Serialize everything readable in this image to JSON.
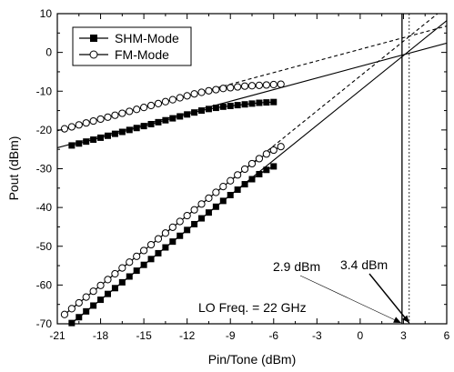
{
  "chart_data": {
    "type": "line",
    "xlabel": "Pin/Tone (dBm)",
    "ylabel": "Pout (dBm)",
    "xlim": [
      -21,
      6
    ],
    "ylim": [
      -70,
      10
    ],
    "xticks": [
      -21,
      -18,
      -15,
      -12,
      -9,
      -6,
      -3,
      0,
      3,
      6
    ],
    "yticks": [
      -70,
      -60,
      -50,
      -40,
      -30,
      -20,
      -10,
      0,
      10
    ],
    "xtick_labels": [
      "-21",
      "-18",
      "-15",
      "-12",
      "-9",
      "-6",
      "-3",
      "0",
      "3",
      "6"
    ],
    "ytick_labels": [
      "-70",
      "-60",
      "-50",
      "-40",
      "-30",
      "-20",
      "-10",
      "0",
      "10"
    ],
    "grid": false,
    "legend_position": "top-left",
    "series": [
      {
        "name": "SHM-Mode",
        "marker": "filled-square",
        "x": [
          -20,
          -19.5,
          -19,
          -18.5,
          -18,
          -17.5,
          -17,
          -16.5,
          -16,
          -15.5,
          -15,
          -14.5,
          -14,
          -13.5,
          -13,
          -12.5,
          -12,
          -11.5,
          -11,
          -10.5,
          -10,
          -9.5,
          -9,
          -8.5,
          -8,
          -7.5,
          -7,
          -6.5,
          -6
        ],
        "fundamental": [
          -24.0,
          -23.5,
          -23.0,
          -22.5,
          -22.0,
          -21.5,
          -21.0,
          -20.5,
          -20.0,
          -19.5,
          -19.0,
          -18.5,
          -18.0,
          -17.5,
          -17.0,
          -16.5,
          -16.0,
          -15.5,
          -15.0,
          -14.6,
          -14.3,
          -14.0,
          -13.8,
          -13.6,
          -13.4,
          -13.2,
          -13.0,
          -12.9,
          -12.8
        ],
        "im3": [
          -69.8,
          -68.3,
          -66.8,
          -65.3,
          -63.8,
          -62.3,
          -60.8,
          -59.3,
          -57.8,
          -56.3,
          -54.8,
          -53.3,
          -51.8,
          -50.3,
          -48.8,
          -47.3,
          -45.8,
          -44.3,
          -42.8,
          -41.3,
          -39.8,
          -38.3,
          -36.8,
          -35.4,
          -34.0,
          -32.7,
          -31.4,
          -30.3,
          -29.4
        ]
      },
      {
        "name": "FM-Mode",
        "marker": "open-circle",
        "x": [
          -20.5,
          -20,
          -19.5,
          -19,
          -18.5,
          -18,
          -17.5,
          -17,
          -16.5,
          -16,
          -15.5,
          -15,
          -14.5,
          -14,
          -13.5,
          -13,
          -12.5,
          -12,
          -11.5,
          -11,
          -10.5,
          -10,
          -9.5,
          -9,
          -8.5,
          -8,
          -7.5,
          -7,
          -6.5,
          -6,
          -5.5
        ],
        "fundamental": [
          -19.7,
          -19.2,
          -18.7,
          -18.2,
          -17.7,
          -17.2,
          -16.7,
          -16.2,
          -15.7,
          -15.2,
          -14.7,
          -14.2,
          -13.7,
          -13.2,
          -12.7,
          -12.2,
          -11.7,
          -11.2,
          -10.7,
          -10.3,
          -9.9,
          -9.6,
          -9.3,
          -9.1,
          -8.9,
          -8.7,
          -8.6,
          -8.5,
          -8.4,
          -8.3,
          -8.2
        ],
        "im3": [
          -67.6,
          -66.1,
          -64.6,
          -63.1,
          -61.6,
          -60.1,
          -58.6,
          -57.1,
          -55.6,
          -54.1,
          -52.6,
          -51.1,
          -49.6,
          -48.1,
          -46.6,
          -45.1,
          -43.6,
          -42.1,
          -40.6,
          -39.1,
          -37.6,
          -36.1,
          -34.6,
          -33.1,
          -31.6,
          -30.1,
          -28.7,
          -27.4,
          -26.2,
          -25.2,
          -24.3
        ]
      }
    ],
    "extrapolation_lines": [
      {
        "series": "SHM-Mode",
        "kind": "fundamental",
        "style": "solid",
        "x": [
          -21,
          6
        ],
        "y": [
          -24.6,
          2.4
        ]
      },
      {
        "series": "SHM-Mode",
        "kind": "im3",
        "style": "solid",
        "x": [
          -20,
          6
        ],
        "y": [
          -69.8,
          8.2
        ]
      },
      {
        "series": "FM-Mode",
        "kind": "fundamental",
        "style": "dashed",
        "x": [
          -21,
          6
        ],
        "y": [
          -20.2,
          6.8
        ]
      },
      {
        "series": "FM-Mode",
        "kind": "im3",
        "style": "dashed",
        "x": [
          -20.5,
          6
        ],
        "y": [
          -67.6,
          11.9
        ]
      }
    ],
    "vertical_markers": [
      {
        "x": 2.9,
        "style": "solid"
      },
      {
        "x": 3.4,
        "style": "dashed"
      }
    ],
    "annotations": [
      {
        "text": "2.9 dBm",
        "target_x": 2.9
      },
      {
        "text": "3.4 dBm",
        "target_x": 3.4
      },
      {
        "text": "LO Freq. = 22 GHz"
      }
    ]
  }
}
